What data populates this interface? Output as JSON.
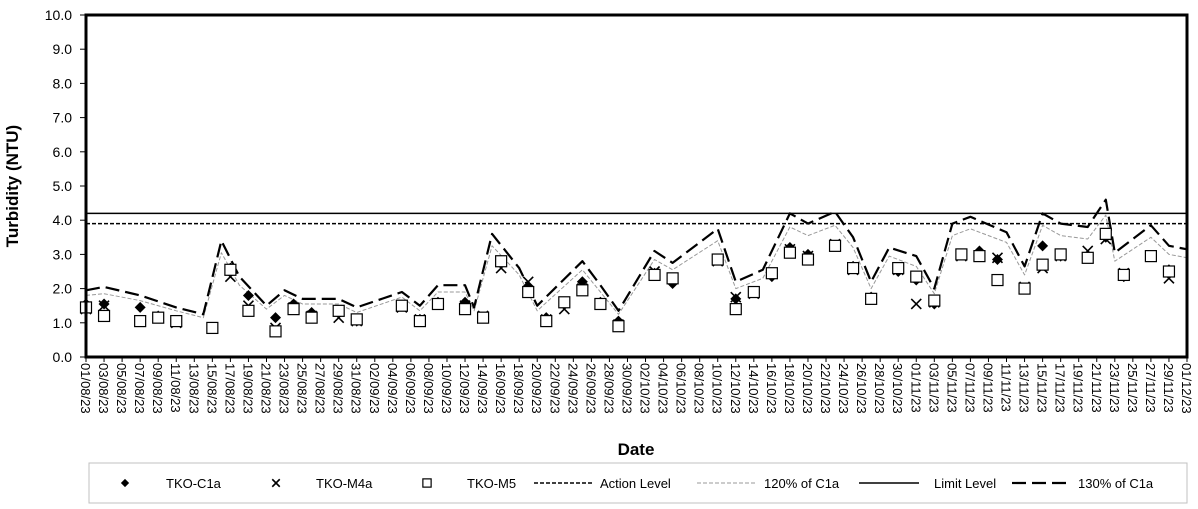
{
  "chart_data": {
    "type": "scatter",
    "xlabel": "Date",
    "ylabel": "Turbidity (NTU)",
    "ylim": [
      0,
      10
    ],
    "yticks": [
      "0.0",
      "1.0",
      "2.0",
      "3.0",
      "4.0",
      "5.0",
      "6.0",
      "7.0",
      "8.0",
      "9.0",
      "10.0"
    ],
    "xlim": [
      "01/08/23",
      "01/12/23"
    ],
    "xticks": [
      "01/08/23",
      "03/08/23",
      "05/08/23",
      "07/08/23",
      "09/08/23",
      "11/08/23",
      "13/08/23",
      "15/08/23",
      "17/08/23",
      "19/08/23",
      "21/08/23",
      "23/08/23",
      "25/08/23",
      "27/08/23",
      "29/08/23",
      "31/08/23",
      "02/09/23",
      "04/09/23",
      "06/09/23",
      "08/09/23",
      "10/09/23",
      "12/09/23",
      "14/09/23",
      "16/09/23",
      "18/09/23",
      "20/09/23",
      "22/09/23",
      "24/09/23",
      "26/09/23",
      "28/09/23",
      "30/09/23",
      "02/10/23",
      "04/10/23",
      "06/10/23",
      "08/10/23",
      "10/10/23",
      "12/10/23",
      "14/10/23",
      "16/10/23",
      "18/10/23",
      "20/10/23",
      "22/10/23",
      "24/10/23",
      "26/10/23",
      "28/10/23",
      "30/10/23",
      "01/11/23",
      "03/11/23",
      "05/11/23",
      "07/11/23",
      "09/11/23",
      "11/11/23",
      "13/11/23",
      "15/11/23",
      "17/11/23",
      "19/11/23",
      "21/11/23",
      "23/11/23",
      "25/11/23",
      "27/11/23",
      "29/11/23",
      "01/12/23"
    ],
    "grid": false,
    "legend_position": "bottom",
    "x": [
      "01/08/23",
      "03/08/23",
      "07/08/23",
      "09/08/23",
      "11/08/23",
      "15/08/23",
      "17/08/23",
      "19/08/23",
      "22/08/23",
      "24/08/23",
      "26/08/23",
      "29/08/23",
      "31/08/23",
      "05/09/23",
      "07/09/23",
      "09/09/23",
      "12/09/23",
      "14/09/23",
      "16/09/23",
      "19/09/23",
      "21/09/23",
      "23/09/23",
      "25/09/23",
      "27/09/23",
      "29/09/23",
      "03/10/23",
      "05/10/23",
      "10/10/23",
      "12/10/23",
      "14/10/23",
      "16/10/23",
      "18/10/23",
      "20/10/23",
      "23/10/23",
      "25/10/23",
      "27/10/23",
      "30/10/23",
      "01/11/23",
      "03/11/23",
      "06/11/23",
      "08/11/23",
      "10/11/23",
      "13/11/23",
      "15/11/23",
      "17/11/23",
      "20/11/23",
      "22/11/23",
      "24/11/23",
      "27/11/23",
      "29/11/23"
    ],
    "series": [
      {
        "name": "TKO-C1a",
        "marker": "diamond",
        "color": "#000000",
        "values": [
          1.55,
          1.55,
          1.45,
          1.2,
          1.05,
          0.85,
          2.6,
          1.8,
          1.15,
          1.55,
          1.3,
          1.3,
          1.05,
          1.5,
          1.1,
          1.6,
          1.6,
          1.15,
          2.75,
          2.05,
          1.15,
          1.6,
          2.2,
          1.6,
          1.05,
          2.45,
          2.15,
          2.85,
          1.7,
          1.9,
          2.35,
          3.2,
          3.0,
          3.25,
          2.65,
          1.75,
          2.5,
          2.25,
          1.55,
          3.0,
          3.1,
          2.85,
          2.0,
          3.25,
          2.95,
          2.95,
          3.5,
          2.35,
          2.95,
          2.55
        ]
      },
      {
        "name": "TKO-M4a",
        "marker": "cross",
        "color": "#000000",
        "values": [
          1.4,
          1.5,
          1.05,
          1.15,
          1.0,
          0.85,
          2.35,
          1.5,
          0.85,
          1.45,
          1.2,
          1.15,
          1.05,
          1.45,
          1.1,
          1.55,
          1.5,
          1.2,
          2.6,
          2.2,
          1.1,
          1.4,
          2.0,
          1.55,
          0.95,
          2.5,
          2.3,
          2.8,
          1.75,
          1.85,
          2.45,
          3.15,
          2.95,
          3.3,
          2.55,
          1.7,
          2.55,
          1.55,
          1.6,
          2.95,
          2.95,
          2.9,
          2.05,
          2.6,
          2.95,
          3.1,
          3.45,
          2.45,
          2.95,
          2.3
        ]
      },
      {
        "name": "TKO-M5",
        "marker": "square",
        "color": "#000000",
        "values": [
          1.45,
          1.2,
          1.05,
          1.15,
          1.05,
          0.85,
          2.55,
          1.35,
          0.75,
          1.4,
          1.15,
          1.35,
          1.1,
          1.5,
          1.05,
          1.55,
          1.4,
          1.15,
          2.8,
          1.9,
          1.05,
          1.6,
          1.95,
          1.55,
          0.9,
          2.4,
          2.3,
          2.85,
          1.4,
          1.9,
          2.45,
          3.05,
          2.85,
          3.25,
          2.6,
          1.7,
          2.6,
          2.35,
          1.65,
          3.0,
          2.95,
          2.25,
          2.0,
          2.7,
          3.0,
          2.9,
          3.6,
          2.4,
          2.95,
          2.5
        ]
      },
      {
        "name": "Action Level",
        "line": "dashed",
        "color": "#000000",
        "constant": 3.9
      },
      {
        "name": "120% of C1a",
        "line": "dashed-thin",
        "color": "#999999",
        "points": [
          [
            "01/08/23",
            1.8
          ],
          [
            "03/08/23",
            1.85
          ],
          [
            "07/08/23",
            1.65
          ],
          [
            "11/08/23",
            1.35
          ],
          [
            "14/08/23",
            1.15
          ],
          [
            "16/08/23",
            3.05
          ],
          [
            "18/08/23",
            2.1
          ],
          [
            "21/08/23",
            1.4
          ],
          [
            "23/08/23",
            1.8
          ],
          [
            "25/08/23",
            1.55
          ],
          [
            "29/08/23",
            1.55
          ],
          [
            "31/08/23",
            1.3
          ],
          [
            "05/09/23",
            1.75
          ],
          [
            "07/09/23",
            1.35
          ],
          [
            "09/09/23",
            1.9
          ],
          [
            "12/09/23",
            1.9
          ],
          [
            "13/09/23",
            1.35
          ],
          [
            "15/09/23",
            3.25
          ],
          [
            "18/09/23",
            2.4
          ],
          [
            "20/09/23",
            1.35
          ],
          [
            "25/09/23",
            2.55
          ],
          [
            "27/09/23",
            1.9
          ],
          [
            "29/09/23",
            1.25
          ],
          [
            "03/10/23",
            2.85
          ],
          [
            "05/10/23",
            2.55
          ],
          [
            "10/10/23",
            3.4
          ],
          [
            "12/10/23",
            2.0
          ],
          [
            "15/10/23",
            2.3
          ],
          [
            "18/10/23",
            3.8
          ],
          [
            "20/10/23",
            3.55
          ],
          [
            "23/10/23",
            3.85
          ],
          [
            "25/10/23",
            3.2
          ],
          [
            "27/10/23",
            2.0
          ],
          [
            "29/10/23",
            2.95
          ],
          [
            "01/11/23",
            2.65
          ],
          [
            "03/11/23",
            1.85
          ],
          [
            "05/11/23",
            3.55
          ],
          [
            "07/11/23",
            3.75
          ],
          [
            "11/11/23",
            3.35
          ],
          [
            "13/11/23",
            2.4
          ],
          [
            "15/11/23",
            3.85
          ],
          [
            "17/11/23",
            3.55
          ],
          [
            "20/11/23",
            3.45
          ],
          [
            "22/11/23",
            4.15
          ],
          [
            "23/11/23",
            2.8
          ],
          [
            "27/11/23",
            3.5
          ],
          [
            "29/11/23",
            3.0
          ],
          [
            "01/12/23",
            2.9
          ]
        ]
      },
      {
        "name": "Limit Level",
        "line": "solid",
        "color": "#000000",
        "constant": 4.2
      },
      {
        "name": "130% of C1a",
        "line": "long-dash",
        "color": "#000000",
        "points": [
          [
            "01/08/23",
            1.95
          ],
          [
            "03/08/23",
            2.05
          ],
          [
            "07/08/23",
            1.8
          ],
          [
            "11/08/23",
            1.45
          ],
          [
            "14/08/23",
            1.25
          ],
          [
            "16/08/23",
            3.4
          ],
          [
            "18/08/23",
            2.35
          ],
          [
            "21/08/23",
            1.5
          ],
          [
            "23/08/23",
            1.95
          ],
          [
            "25/08/23",
            1.7
          ],
          [
            "29/08/23",
            1.7
          ],
          [
            "31/08/23",
            1.45
          ],
          [
            "05/09/23",
            1.9
          ],
          [
            "07/09/23",
            1.5
          ],
          [
            "09/09/23",
            2.1
          ],
          [
            "12/09/23",
            2.1
          ],
          [
            "13/09/23",
            1.45
          ],
          [
            "15/09/23",
            3.6
          ],
          [
            "18/09/23",
            2.6
          ],
          [
            "20/09/23",
            1.5
          ],
          [
            "25/09/23",
            2.8
          ],
          [
            "27/09/23",
            2.1
          ],
          [
            "29/09/23",
            1.35
          ],
          [
            "03/10/23",
            3.1
          ],
          [
            "05/10/23",
            2.75
          ],
          [
            "10/10/23",
            3.75
          ],
          [
            "12/10/23",
            2.2
          ],
          [
            "15/10/23",
            2.55
          ],
          [
            "18/10/23",
            4.2
          ],
          [
            "20/10/23",
            3.9
          ],
          [
            "23/10/23",
            4.25
          ],
          [
            "25/10/23",
            3.5
          ],
          [
            "27/10/23",
            2.2
          ],
          [
            "29/10/23",
            3.2
          ],
          [
            "01/11/23",
            2.95
          ],
          [
            "03/11/23",
            2.0
          ],
          [
            "05/11/23",
            3.9
          ],
          [
            "07/11/23",
            4.1
          ],
          [
            "11/11/23",
            3.65
          ],
          [
            "13/11/23",
            2.65
          ],
          [
            "15/11/23",
            4.2
          ],
          [
            "17/11/23",
            3.9
          ],
          [
            "20/11/23",
            3.8
          ],
          [
            "22/11/23",
            4.6
          ],
          [
            "23/11/23",
            3.05
          ],
          [
            "27/11/23",
            3.85
          ],
          [
            "29/11/23",
            3.25
          ],
          [
            "01/12/23",
            3.15
          ]
        ]
      }
    ]
  }
}
